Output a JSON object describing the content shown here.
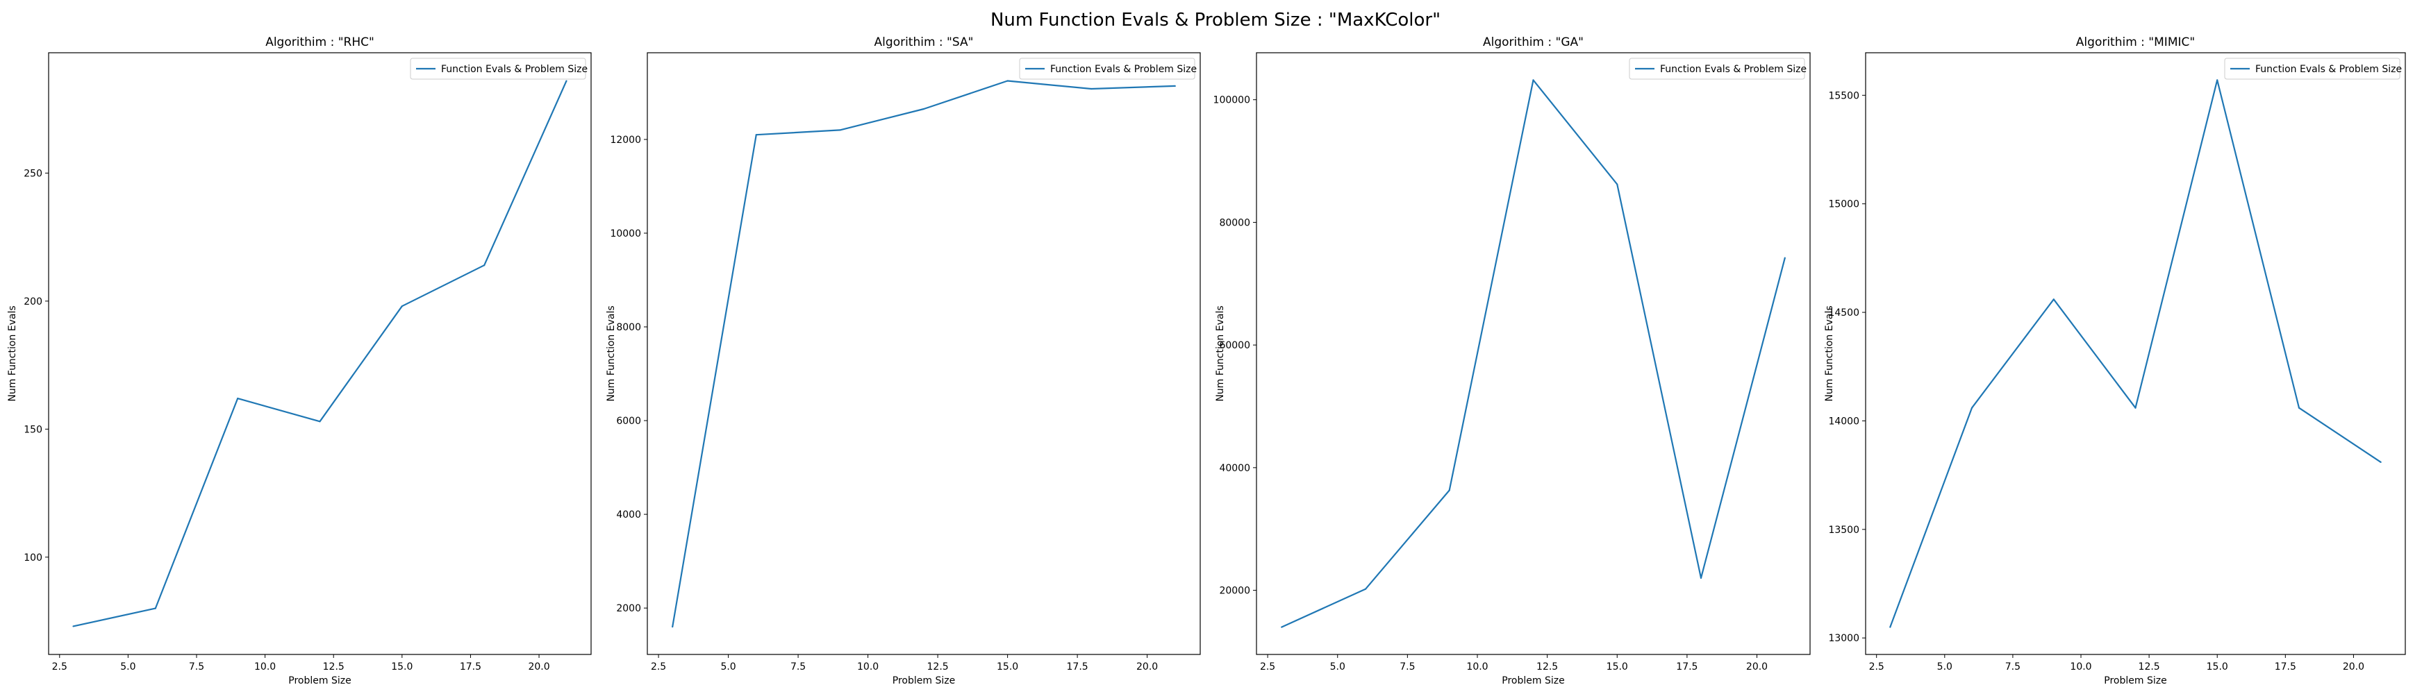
{
  "figure": {
    "suptitle": "Num Function Evals & Problem Size : \"MaxKColor\""
  },
  "colors": {
    "line": "#1f77b4",
    "axes": "#000000",
    "legend_border": "#cccccc"
  },
  "chart_data": [
    {
      "type": "line",
      "title": "Algorithim : \"RHC\"",
      "xlabel": "Problem Size",
      "ylabel": "Num Function Evals",
      "legend": "top-right",
      "grid": false,
      "series": [
        {
          "name": "Function Evals & Problem Size",
          "x": [
            3,
            6,
            9,
            12,
            15,
            18,
            21
          ],
          "values": [
            73,
            80,
            162,
            153,
            198,
            214,
            286
          ]
        }
      ],
      "xlim": [
        2.1,
        21.9
      ],
      "ylim": [
        62,
        297
      ],
      "xticks": [
        2.5,
        5.0,
        7.5,
        10.0,
        12.5,
        15.0,
        17.5,
        20.0
      ],
      "xtick_labels": [
        "2.5",
        "5.0",
        "7.5",
        "10.0",
        "12.5",
        "15.0",
        "17.5",
        "20.0"
      ],
      "yticks": [
        100,
        150,
        200,
        250
      ],
      "ytick_labels": [
        "100",
        "150",
        "200",
        "250"
      ]
    },
    {
      "type": "line",
      "title": "Algorithim : \"SA\"",
      "xlabel": "Problem Size",
      "ylabel": "Num Function Evals",
      "legend": "top-right",
      "grid": false,
      "series": [
        {
          "name": "Function Evals & Problem Size",
          "x": [
            3,
            6,
            9,
            12,
            15,
            18,
            21
          ],
          "values": [
            1600,
            12100,
            12200,
            12650,
            13250,
            13080,
            13140
          ]
        }
      ],
      "xlim": [
        2.1,
        21.9
      ],
      "ylim": [
        1010,
        13850
      ],
      "xticks": [
        2.5,
        5.0,
        7.5,
        10.0,
        12.5,
        15.0,
        17.5,
        20.0
      ],
      "xtick_labels": [
        "2.5",
        "5.0",
        "7.5",
        "10.0",
        "12.5",
        "15.0",
        "17.5",
        "20.0"
      ],
      "yticks": [
        2000,
        4000,
        6000,
        8000,
        10000,
        12000
      ],
      "ytick_labels": [
        "2000",
        "4000",
        "6000",
        "8000",
        "10000",
        "12000"
      ]
    },
    {
      "type": "line",
      "title": "Algorithim : \"GA\"",
      "xlabel": "Problem Size",
      "ylabel": "Num Function Evals",
      "legend": "top-right",
      "grid": false,
      "series": [
        {
          "name": "Function Evals & Problem Size",
          "x": [
            3,
            6,
            9,
            12,
            15,
            18,
            21
          ],
          "values": [
            14000,
            20200,
            36300,
            103200,
            86200,
            22000,
            74200
          ]
        }
      ],
      "xlim": [
        2.1,
        21.9
      ],
      "ylim": [
        9540,
        107660
      ],
      "xticks": [
        2.5,
        5.0,
        7.5,
        10.0,
        12.5,
        15.0,
        17.5,
        20.0
      ],
      "xtick_labels": [
        "2.5",
        "5.0",
        "7.5",
        "10.0",
        "12.5",
        "15.0",
        "17.5",
        "20.0"
      ],
      "yticks": [
        20000,
        40000,
        60000,
        80000,
        100000
      ],
      "ytick_labels": [
        "20000",
        "40000",
        "60000",
        "80000",
        "100000"
      ]
    },
    {
      "type": "line",
      "title": "Algorithim : \"MIMIC\"",
      "xlabel": "Problem Size",
      "ylabel": "Num Function Evals",
      "legend": "top-right",
      "grid": false,
      "series": [
        {
          "name": "Function Evals & Problem Size",
          "x": [
            3,
            6,
            9,
            12,
            15,
            18,
            21
          ],
          "values": [
            13050,
            14060,
            14560,
            14060,
            15570,
            14060,
            13810
          ]
        }
      ],
      "xlim": [
        2.1,
        21.9
      ],
      "ylim": [
        12924,
        15696
      ],
      "xticks": [
        2.5,
        5.0,
        7.5,
        10.0,
        12.5,
        15.0,
        17.5,
        20.0
      ],
      "xtick_labels": [
        "2.5",
        "5.0",
        "7.5",
        "10.0",
        "12.5",
        "15.0",
        "17.5",
        "20.0"
      ],
      "yticks": [
        13000,
        13500,
        14000,
        14500,
        15000,
        15500
      ],
      "ytick_labels": [
        "13000",
        "13500",
        "14000",
        "14500",
        "15000",
        "15500"
      ]
    }
  ]
}
